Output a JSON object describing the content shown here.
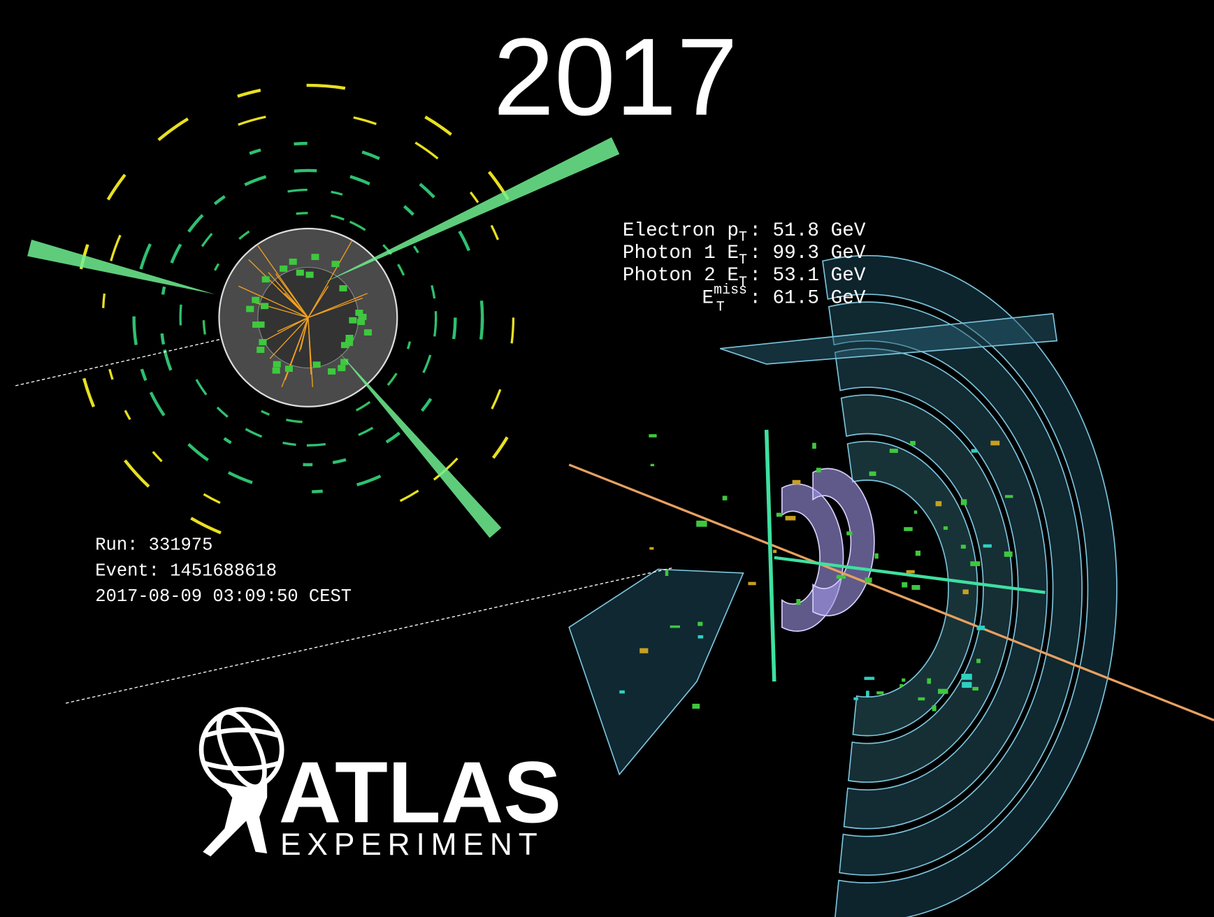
{
  "year": "2017",
  "kinematics": [
    {
      "label": "Electron p",
      "sub": "T",
      "value": ": 51.8 GeV"
    },
    {
      "label": "Photon 1 E",
      "sub": "T",
      "value": ": 99.3 GeV"
    },
    {
      "label": "Photon 2 E",
      "sub": "T",
      "value": ": 53.1 GeV"
    },
    {
      "label": "E",
      "sub": "T",
      "sup": "miss",
      "value": ": 61.5 GeV"
    }
  ],
  "event_info": [
    "Run: 331975",
    "Event: 1451688618",
    "2017-08-09 03:09:50 CEST"
  ],
  "logo": {
    "title": "ATLAS",
    "subtitle": "EXPERIMENT"
  }
}
